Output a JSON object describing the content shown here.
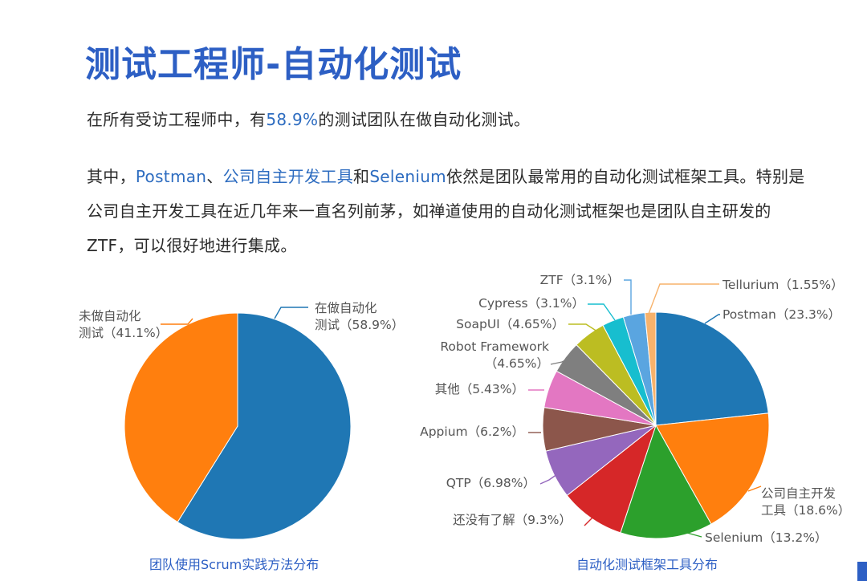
{
  "title": "测试工程师-自动化测试",
  "paragraph1": {
    "before": "在所有受访工程师中，有",
    "highlight": "58.9%",
    "after": "的测试团队在做自动化测试。"
  },
  "paragraph2": {
    "line1_p1": "其中，",
    "line1_h1": "Postman",
    "line1_p2": "、",
    "line1_h2": "公司自主开发工具",
    "line1_p3": "和",
    "line1_h3": "Selenium",
    "line1_p4": "依然是团队最常用的自动化测试框架工具。特别是",
    "line2": "公司自主开发工具在近几年来一直名列前茅，如禅道使用的自动化测试框架也是团队自主研发的",
    "line3": "ZTF，可以很好地进行集成。"
  },
  "chart_data": [
    {
      "type": "pie",
      "caption": "团队使用Scrum实践方法分布",
      "slices": [
        {
          "label_lines": [
            "在做自动化",
            "测试（58.9%）"
          ],
          "value": 58.9,
          "color": "#1f77b4"
        },
        {
          "label_lines": [
            "未做自动化",
            "测试（41.1%）"
          ],
          "value": 41.1,
          "color": "#ff7f0e"
        }
      ]
    },
    {
      "type": "pie",
      "caption": "自动化测试框架工具分布",
      "slices": [
        {
          "label_lines": [
            "Postman（23.3%）"
          ],
          "value": 23.3,
          "color": "#1f77b4"
        },
        {
          "label_lines": [
            "公司自主开发",
            "工具（18.6%）"
          ],
          "value": 18.6,
          "color": "#ff7f0e"
        },
        {
          "label_lines": [
            "Selenium（13.2%）"
          ],
          "value": 13.2,
          "color": "#2ca02c"
        },
        {
          "label_lines": [
            "还没有了解（9.3%）"
          ],
          "value": 9.3,
          "color": "#d62728"
        },
        {
          "label_lines": [
            "QTP（6.98%）"
          ],
          "value": 6.98,
          "color": "#9467bd"
        },
        {
          "label_lines": [
            "Appium（6.2%）"
          ],
          "value": 6.2,
          "color": "#8c564b"
        },
        {
          "label_lines": [
            "其他（5.43%）"
          ],
          "value": 5.43,
          "color": "#e377c2"
        },
        {
          "label_lines": [
            "Robot Framework",
            "（4.65%）"
          ],
          "value": 4.65,
          "color": "#7f7f7f"
        },
        {
          "label_lines": [
            "SoapUI（4.65%）"
          ],
          "value": 4.65,
          "color": "#bcbd22"
        },
        {
          "label_lines": [
            "Cypress（3.1%）"
          ],
          "value": 3.1,
          "color": "#17becf"
        },
        {
          "label_lines": [
            "ZTF（3.1%）"
          ],
          "value": 3.1,
          "color": "#5aa5e0"
        },
        {
          "label_lines": [
            "Tellurium（1.55%）"
          ],
          "value": 1.55,
          "color": "#f7b26b"
        }
      ]
    }
  ]
}
